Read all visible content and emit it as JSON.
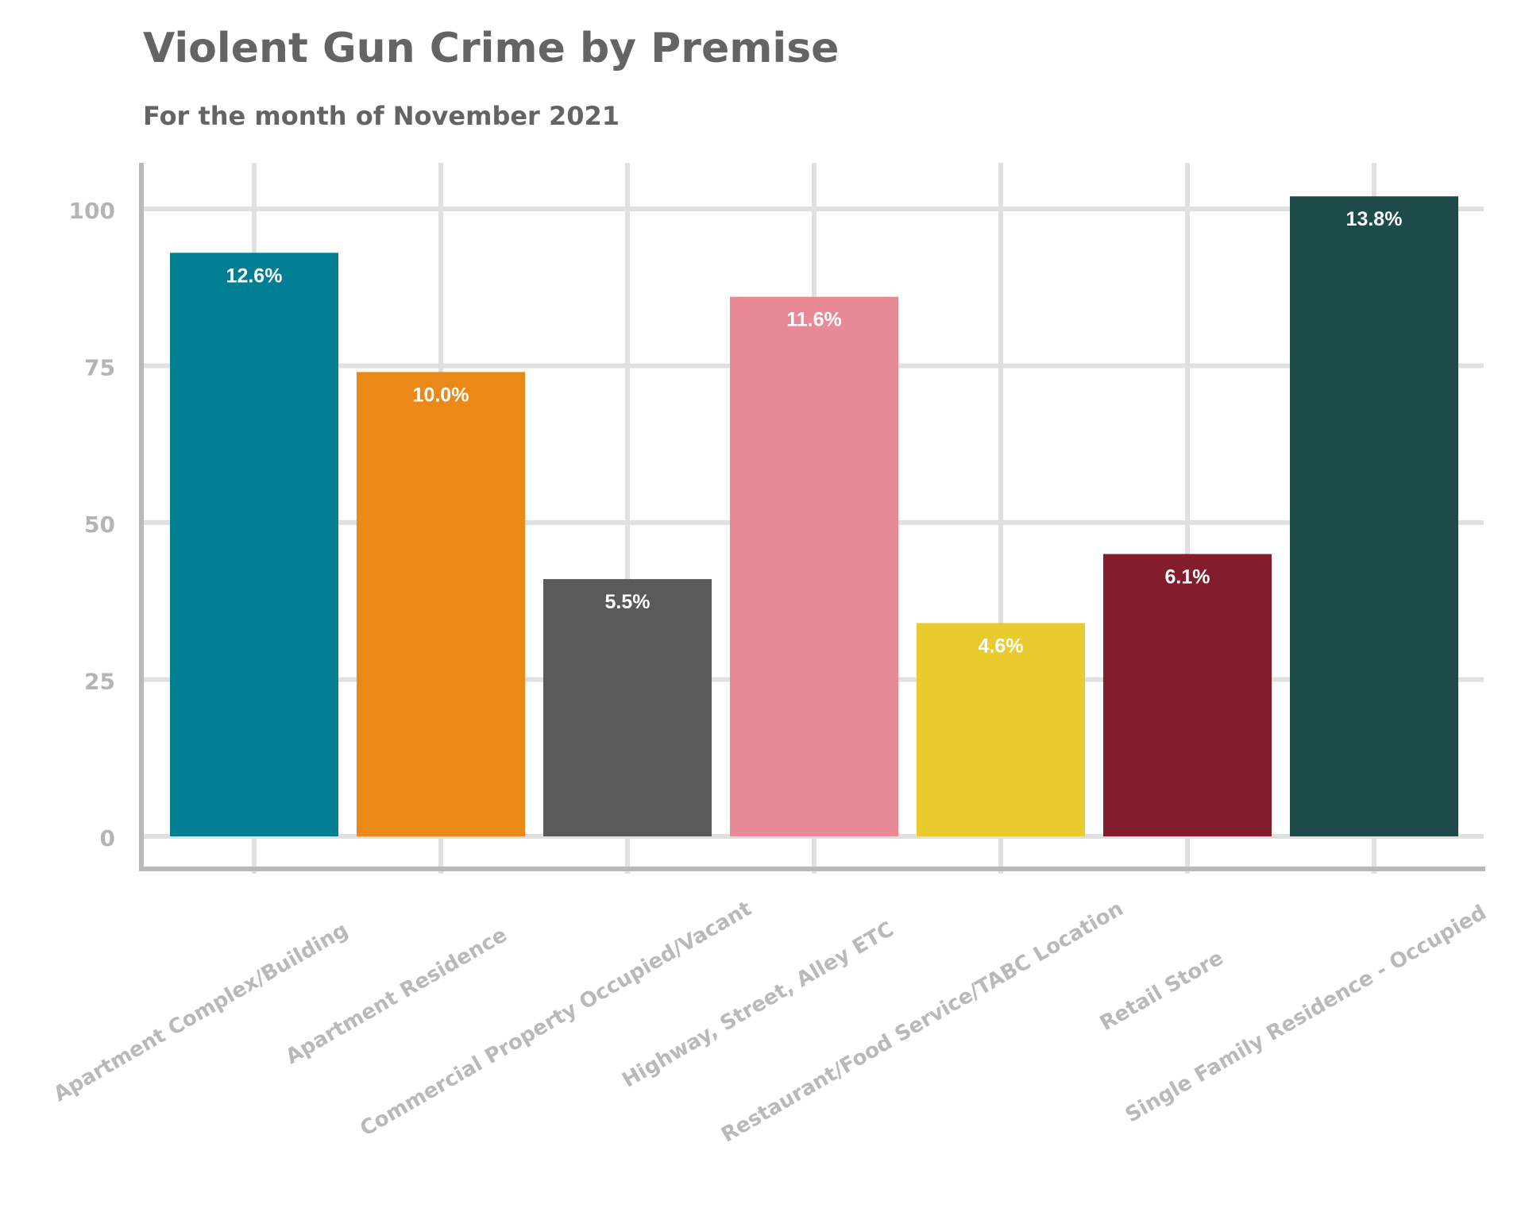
{
  "chart_data": {
    "type": "bar",
    "title": "Violent Gun Crime by Premise",
    "subtitle": "For the month of November 2021",
    "xlabel": "",
    "ylabel": "",
    "ylim": [
      0,
      107
    ],
    "yticks": [
      "0",
      "25",
      "50",
      "75",
      "100"
    ],
    "grid": true,
    "categories": [
      "Apartment Complex/Building",
      "Apartment Residence",
      "Commercial Property Occupied/Vacant",
      "Highway, Street, Alley ETC",
      "Restaurant/Food Service/TABC Location",
      "Retail Store",
      "Single Family Residence - Occupied"
    ],
    "values": [
      93,
      74,
      41,
      86,
      34,
      45,
      102
    ],
    "labels": [
      "12.6%",
      "10.0%",
      "5.5%",
      "11.6%",
      "4.6%",
      "6.1%",
      "13.8%"
    ],
    "colors": [
      "#007f94",
      "#ea8818",
      "#5a5a5a",
      "#e88a95",
      "#eacb2e",
      "#831c2b",
      "#1e4a4a"
    ]
  }
}
